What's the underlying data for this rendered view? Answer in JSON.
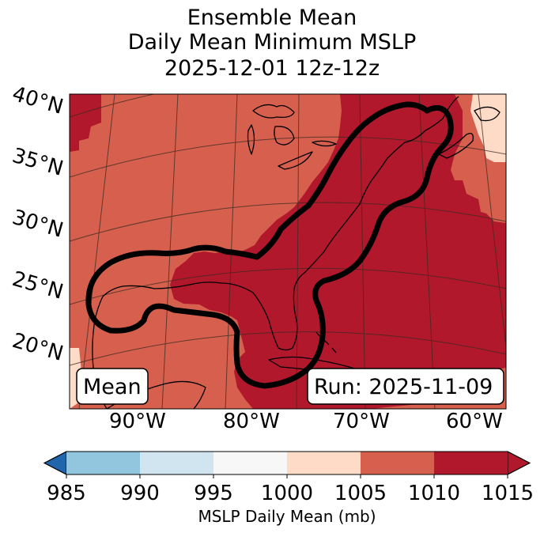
{
  "title": {
    "line1": "Ensemble Mean",
    "line2": "Daily Mean Minimum MSLP",
    "line3": "2025-12-01 12z-12z"
  },
  "map": {
    "lat_labels": [
      "40°N",
      "35°N",
      "30°N",
      "25°N",
      "20°N"
    ],
    "lon_labels": [
      "90°W",
      "80°W",
      "70°W",
      "60°W"
    ],
    "mean_box": "Mean",
    "run_box": "Run: 2025-11-09"
  },
  "colorbar": {
    "ticks": [
      "985",
      "990",
      "995",
      "1000",
      "1005",
      "1010",
      "1015"
    ],
    "colors": [
      "#3f8fc4",
      "#92c5de",
      "#d1e5f0",
      "#f7f7f7",
      "#fddbc7",
      "#d6604d",
      "#b2182b"
    ],
    "under_color": "#2166ac",
    "over_color": "#b2182b",
    "label": "MSLP Daily Mean (mb)"
  },
  "fill_colors": {
    "dark_red": "#b2182b",
    "red": "#d6604d",
    "peach": "#fddbc7"
  }
}
